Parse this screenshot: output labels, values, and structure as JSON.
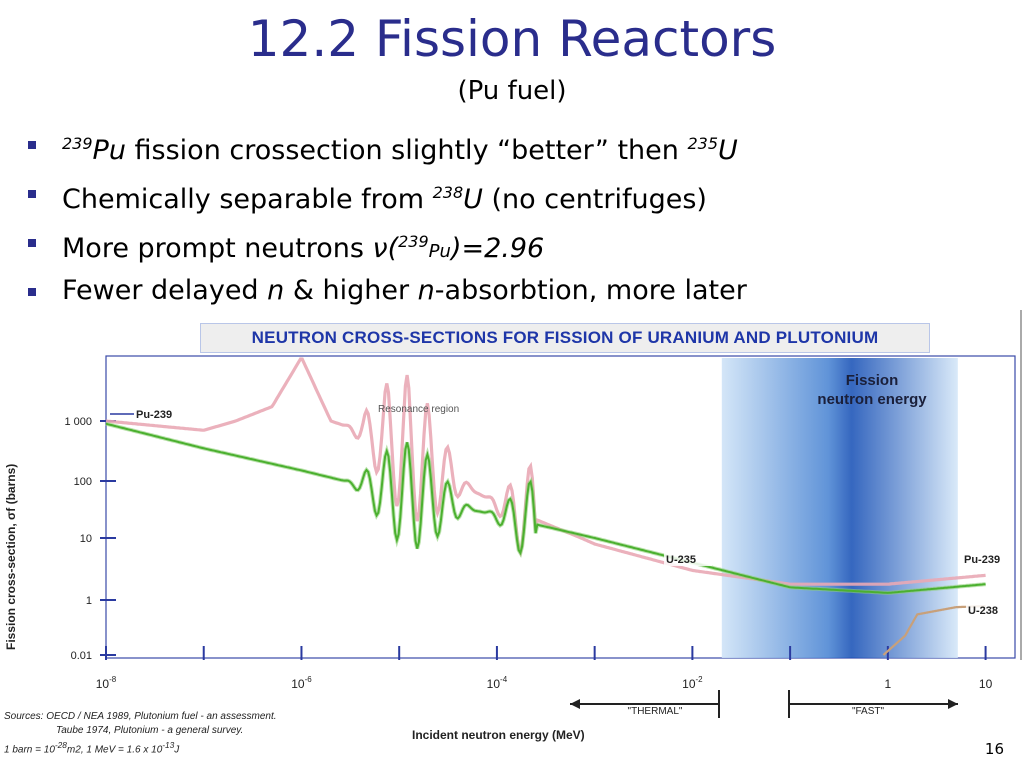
{
  "slide": {
    "title": "12.2 Fission Reactors",
    "subtitle": "(Pu fuel)",
    "page_number": "16"
  },
  "bullets": [
    {
      "pre_sup": "239",
      "pre_sym": "Pu",
      "text": " fission crossection slightly “better” then ",
      "post_sup": "235",
      "post_sym": "U"
    },
    {
      "text": "Chemically separable from ",
      "sup": "238",
      "sym": "U",
      "tail": " (no centrifuges)"
    },
    {
      "text": "More prompt neutrons ",
      "nu": "ν(",
      "sup": "239",
      "sym": "Pu",
      "tail": ")=2.96"
    },
    {
      "text1": "Fewer delayed ",
      "n1": "n",
      "text2": " & higher ",
      "n2": "n",
      "text3": "-absorbtion, more later"
    }
  ],
  "chart_data": {
    "type": "line",
    "title": "NEUTRON CROSS-SECTIONS FOR FISSION OF URANIUM AND PLUTONIUM",
    "xlabel": "Incident neutron energy (MeV)",
    "ylabel": "Fission cross-section, σf (barns)",
    "x_scale": "log",
    "y_scale": "log",
    "x_ticks": [
      {
        "label_base": "10",
        "label_exp": "-8"
      },
      {
        "label_base": "10",
        "label_exp": "-6"
      },
      {
        "label_base": "10",
        "label_exp": "-4"
      },
      {
        "label_base": "10",
        "label_exp": "-2"
      },
      {
        "label_base": "1",
        "label_exp": ""
      },
      {
        "label_base": "10",
        "label_exp": ""
      }
    ],
    "y_ticks": [
      "0.01",
      "1",
      "10",
      "100",
      "1 000"
    ],
    "annotations": {
      "resonance": "Resonance region",
      "fission_band": "Fission neutron energy",
      "thermal": "\"THERMAL\"",
      "fast": "\"FAST\""
    },
    "series": [
      {
        "name": "Pu-239",
        "color": "#e9a9b5",
        "x": [
          1e-08,
          1e-07,
          5e-07,
          1e-06,
          2e-06,
          5e-06,
          1e-05,
          0.0001,
          0.001,
          0.01,
          0.1,
          1,
          10
        ],
        "y": [
          1000,
          700,
          1500,
          6000,
          1000,
          600,
          350,
          40,
          8,
          3,
          1.8,
          1.8,
          2.5
        ]
      },
      {
        "name": "U-235",
        "color": "#4bb02f",
        "x": [
          1e-08,
          1e-07,
          1e-06,
          1e-05,
          0.0001,
          0.001,
          0.01,
          0.1,
          1,
          10
        ],
        "y": [
          900,
          350,
          150,
          60,
          25,
          10,
          4,
          1.6,
          1.3,
          1.8
        ]
      },
      {
        "name": "U-238",
        "color": "#c8a07a",
        "x": [
          0.9,
          1.5,
          2,
          5,
          10
        ],
        "y": [
          0.01,
          0.05,
          0.3,
          0.55,
          0.6
        ]
      }
    ]
  },
  "sources": {
    "label": "Sources:",
    "line1": " OECD / NEA 1989, Plutonium fuel - an assessment.",
    "line2": "Taube 1974, Plutonium - a general survey.",
    "line3_a": "1 barn = 10",
    "line3_exp1": "-28",
    "line3_b": "m2,  1 MeV = 1.6 x 10",
    "line3_exp2": "-13",
    "line3_c": "J"
  }
}
